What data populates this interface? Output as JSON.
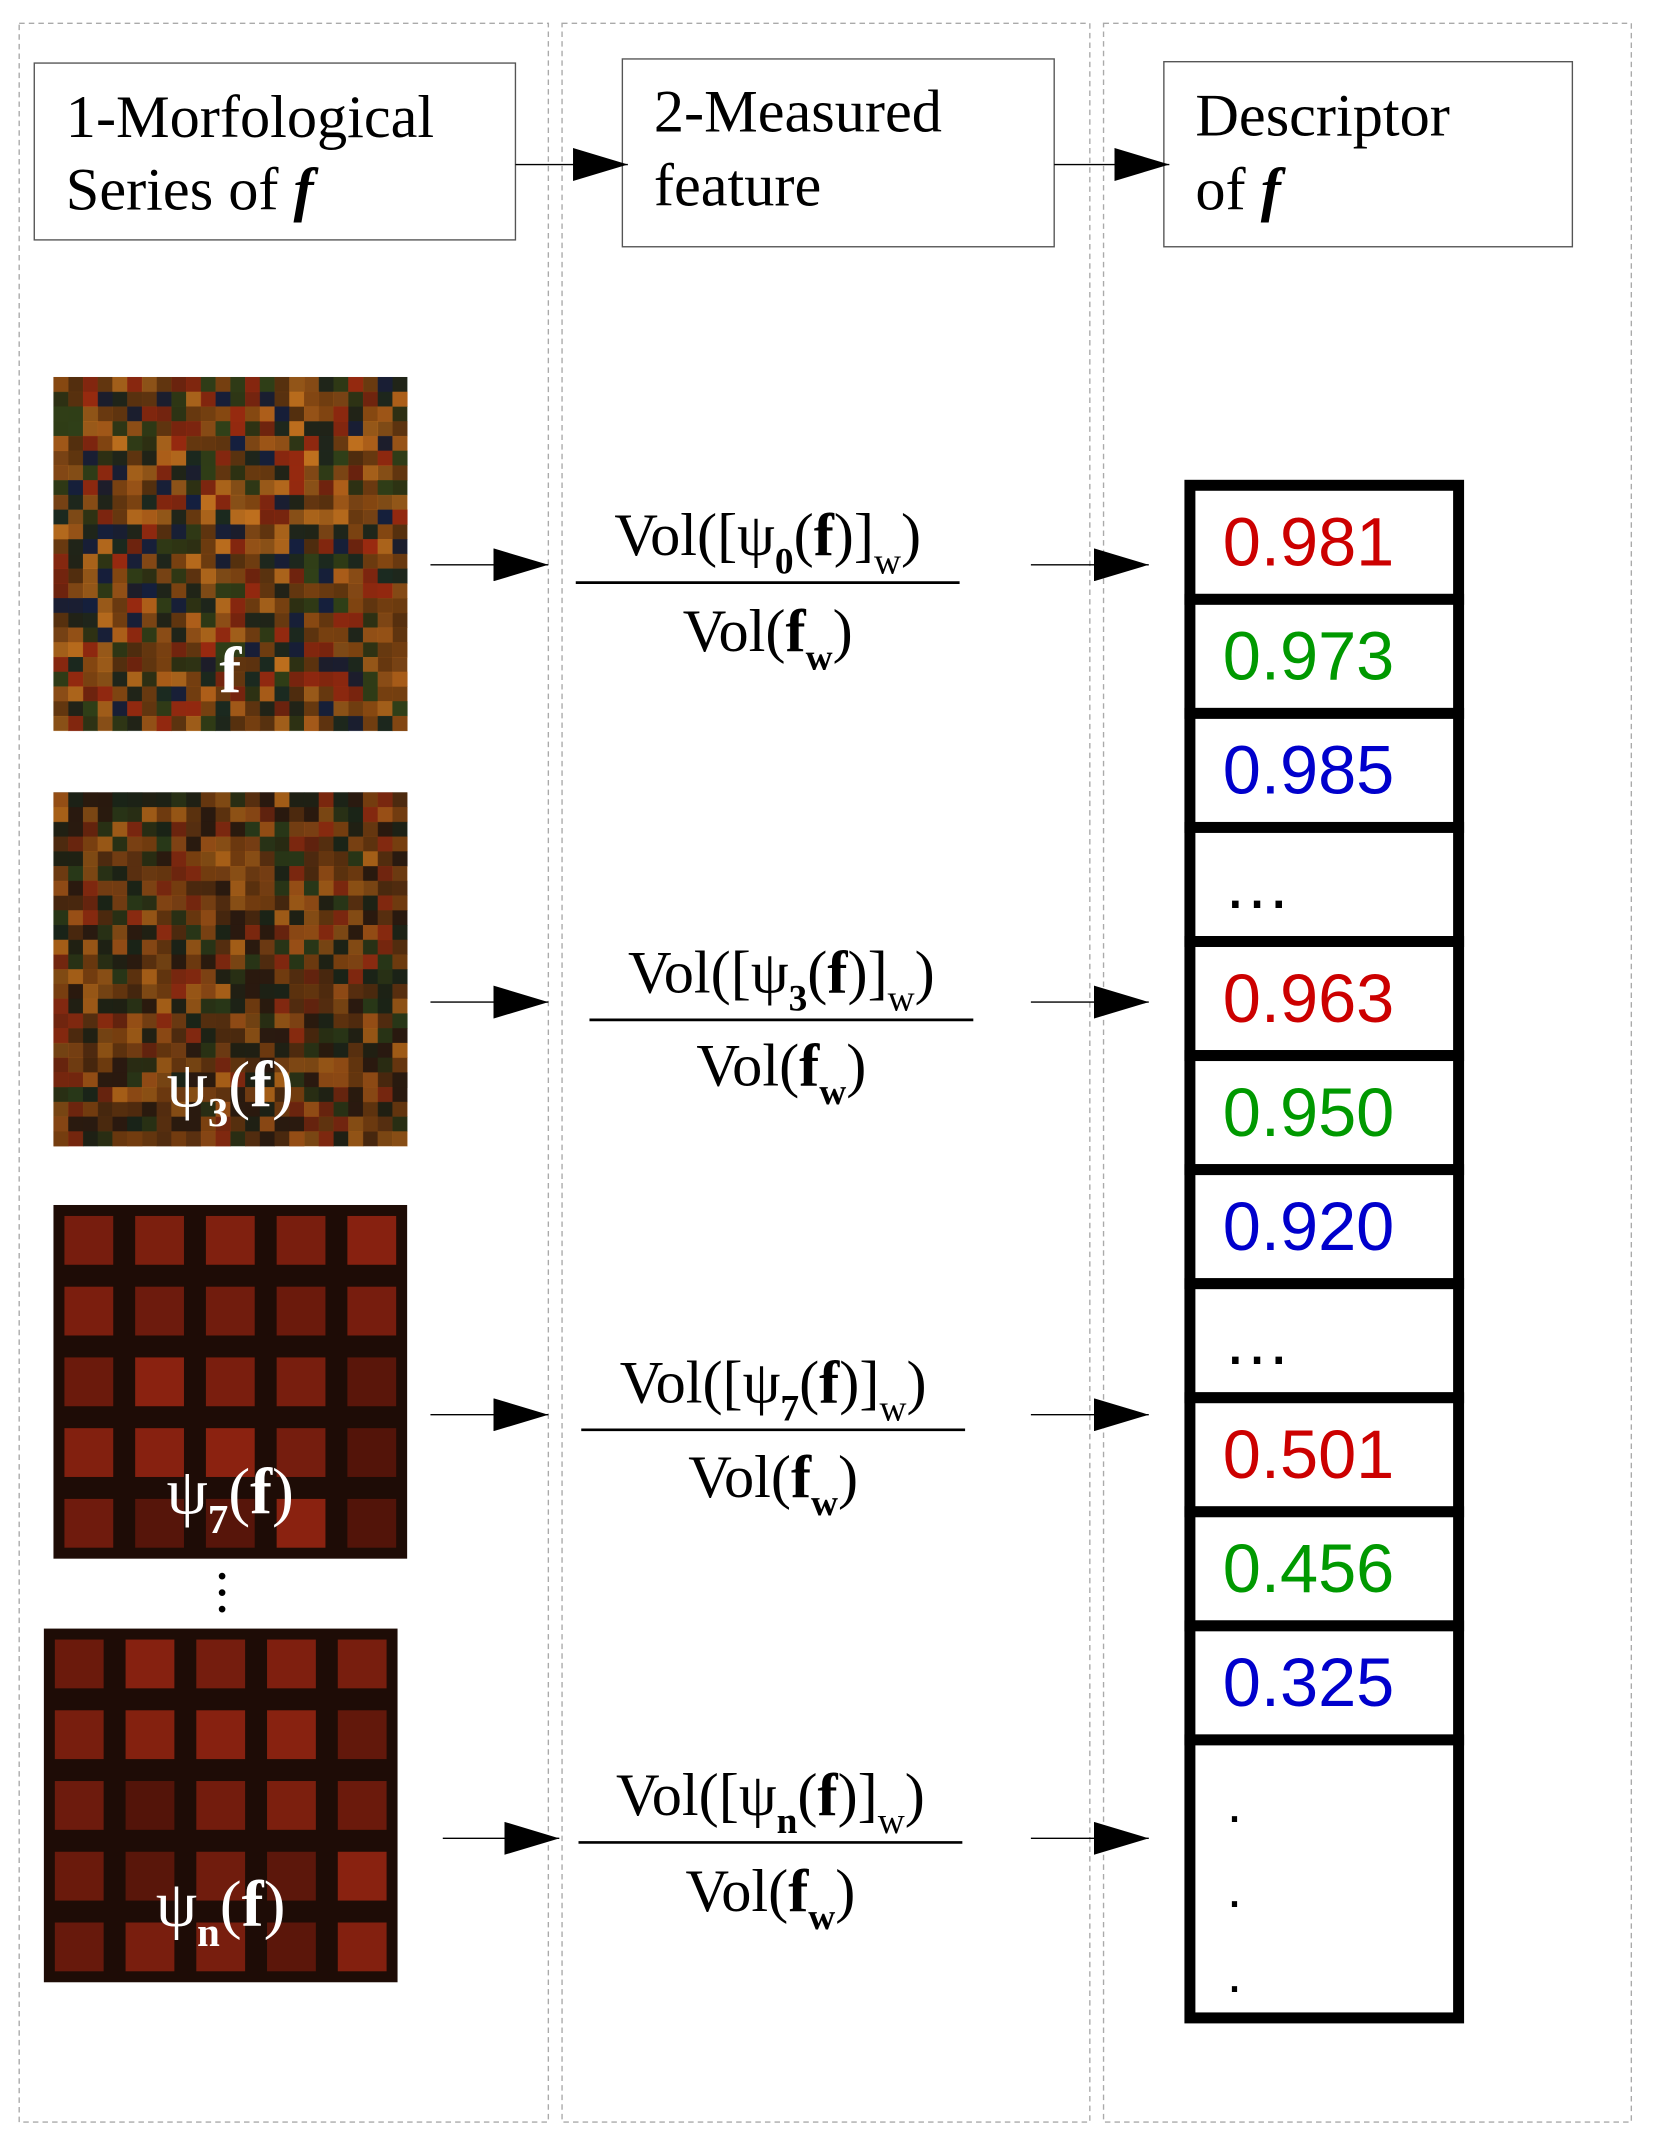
{
  "headers": [
    {
      "lines": [
        [
          {
            "t": "1-Morfological"
          }
        ],
        [
          {
            "t": "Series of "
          },
          {
            "t": "f",
            "bi": true
          }
        ]
      ]
    },
    {
      "lines": [
        [
          {
            "t": "2-Measured"
          }
        ],
        [
          {
            "t": "feature"
          }
        ]
      ]
    },
    {
      "lines": [
        [
          {
            "t": "Descriptor"
          }
        ],
        [
          {
            "t": "of "
          },
          {
            "t": "f",
            "bi": true
          }
        ]
      ]
    }
  ],
  "rows": [
    {
      "image_label": [
        {
          "t": "f",
          "b": true
        }
      ],
      "numerator": [
        {
          "t": "Vol(["
        },
        {
          "t": "ψ"
        },
        {
          "t": "0",
          "sub": true,
          "b": true
        },
        {
          "t": "("
        },
        {
          "t": "f",
          "b": true
        },
        {
          "t": ")]"
        },
        {
          "t": "w",
          "sub": true
        },
        {
          "t": ")"
        }
      ],
      "denominator": [
        {
          "t": "Vol("
        },
        {
          "t": "f",
          "b": true
        },
        {
          "t": "w",
          "sub": true,
          "b": true
        },
        {
          "t": ")"
        }
      ]
    },
    {
      "image_label": [
        {
          "t": "ψ"
        },
        {
          "t": "3",
          "sub": true,
          "b": true
        },
        {
          "t": "("
        },
        {
          "t": "f",
          "b": true
        },
        {
          "t": ")"
        }
      ],
      "numerator": [
        {
          "t": "Vol(["
        },
        {
          "t": "ψ"
        },
        {
          "t": "3",
          "sub": true,
          "b": true
        },
        {
          "t": "("
        },
        {
          "t": "f",
          "b": true
        },
        {
          "t": ")]"
        },
        {
          "t": "w",
          "sub": true
        },
        {
          "t": ")"
        }
      ],
      "denominator": [
        {
          "t": "Vol("
        },
        {
          "t": "f",
          "b": true
        },
        {
          "t": "w",
          "sub": true,
          "b": true
        },
        {
          "t": ")"
        }
      ]
    },
    {
      "image_label": [
        {
          "t": "ψ"
        },
        {
          "t": "7",
          "sub": true,
          "b": true
        },
        {
          "t": "("
        },
        {
          "t": "f",
          "b": true
        },
        {
          "t": ")"
        }
      ],
      "numerator": [
        {
          "t": "Vol(["
        },
        {
          "t": "ψ"
        },
        {
          "t": "7",
          "sub": true,
          "b": true
        },
        {
          "t": "("
        },
        {
          "t": "f",
          "b": true
        },
        {
          "t": ")]"
        },
        {
          "t": "w",
          "sub": true
        },
        {
          "t": ")"
        }
      ],
      "denominator": [
        {
          "t": "Vol("
        },
        {
          "t": "f",
          "b": true
        },
        {
          "t": "w",
          "sub": true,
          "b": true
        },
        {
          "t": ")"
        }
      ]
    },
    {
      "image_label": [
        {
          "t": "ψ"
        },
        {
          "t": "n",
          "sub": true,
          "b": true
        },
        {
          "t": "("
        },
        {
          "t": "f",
          "b": true
        },
        {
          "t": ")"
        }
      ],
      "numerator": [
        {
          "t": "Vol(["
        },
        {
          "t": "ψ"
        },
        {
          "t": "n",
          "sub": true,
          "b": true
        },
        {
          "t": "("
        },
        {
          "t": "f",
          "b": true
        },
        {
          "t": ")]"
        },
        {
          "t": "w",
          "sub": true
        },
        {
          "t": ")"
        }
      ],
      "denominator": [
        {
          "t": "Vol("
        },
        {
          "t": "f",
          "b": true
        },
        {
          "t": "w",
          "sub": true,
          "b": true
        },
        {
          "t": ")"
        }
      ]
    }
  ],
  "series_ellipsis": [
    "·",
    "·",
    "·"
  ],
  "descriptor": {
    "cells": [
      {
        "text": "0.981",
        "color": "#cc0000"
      },
      {
        "text": "0.973",
        "color": "#009900"
      },
      {
        "text": "0.985",
        "color": "#0000cc"
      },
      {
        "text": "…",
        "color": "#000000"
      },
      {
        "text": "0.963",
        "color": "#cc0000"
      },
      {
        "text": "0.950",
        "color": "#009900"
      },
      {
        "text": "0.920",
        "color": "#0000cc"
      },
      {
        "text": "…",
        "color": "#000000"
      },
      {
        "text": "0.501",
        "color": "#cc0000"
      },
      {
        "text": "0.456",
        "color": "#009900"
      },
      {
        "text": "0.325",
        "color": "#0000cc"
      }
    ],
    "vertical_dots": [
      ".",
      ".",
      "."
    ]
  }
}
